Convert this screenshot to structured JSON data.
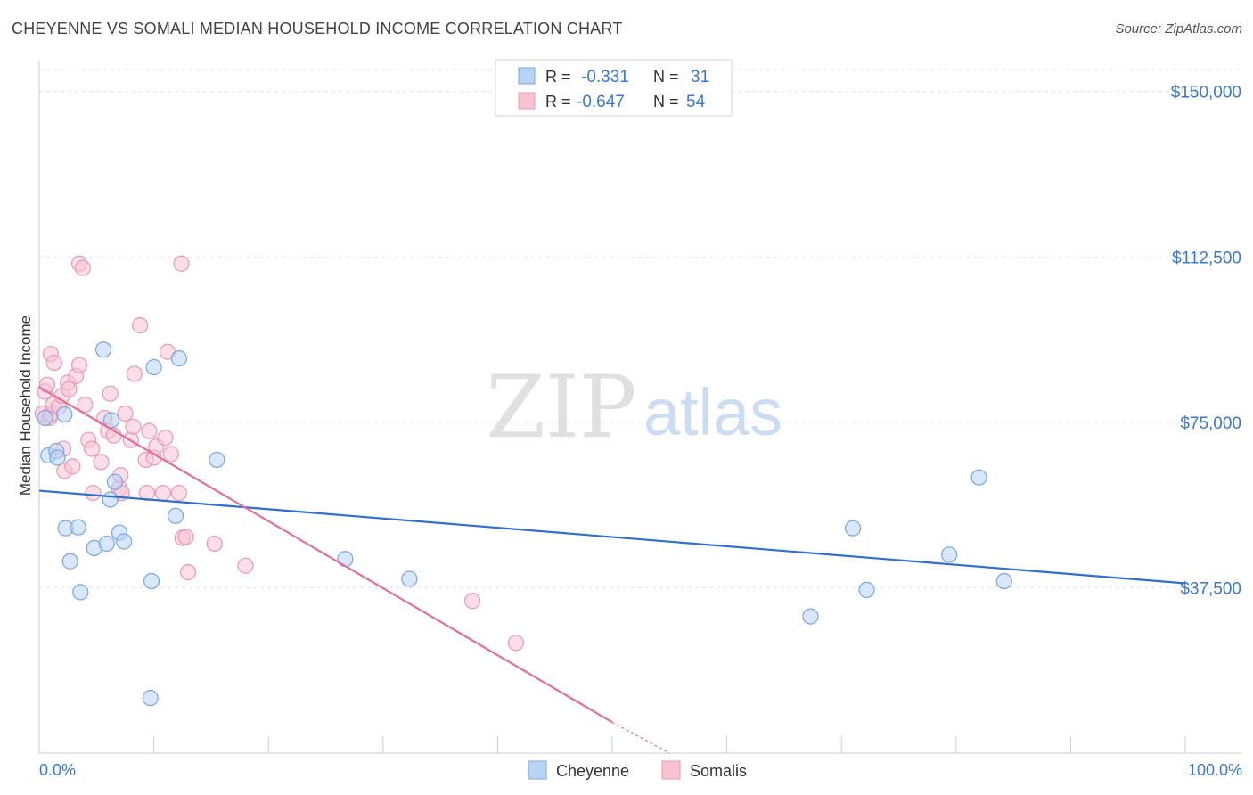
{
  "header": {
    "title": "CHEYENNE VS SOMALI MEDIAN HOUSEHOLD INCOME CORRELATION CHART",
    "source": "Source: ZipAtlas.com"
  },
  "watermark": {
    "zip": "ZIP",
    "atlas": "atlas"
  },
  "legend_top": [
    {
      "r_label": "R =",
      "r_value": "-0.331",
      "n_label": "N =",
      "n_value": "31"
    },
    {
      "r_label": "R =",
      "r_value": "-0.647",
      "n_label": "N =",
      "n_value": "54"
    }
  ],
  "colors": {
    "cheyenne_fill": "#b9d3f5",
    "cheyenne_stroke": "#7aa6df",
    "cheyenne_line": "#2f6fce",
    "somali_fill": "#f8c3d3",
    "somali_stroke": "#e899b3",
    "somali_line": "#e0709a",
    "axis_text": "#3a78d0",
    "grid": "#e2e2e2"
  },
  "chart_data": {
    "type": "scatter",
    "title": "CHEYENNE VS SOMALI MEDIAN HOUSEHOLD INCOME CORRELATION CHART",
    "xlabel": "",
    "ylabel": "Median Household Income",
    "xlim": [
      0,
      100
    ],
    "ylim": [
      0,
      155000
    ],
    "x_tick_labels": [
      "0.0%",
      "100.0%"
    ],
    "y_ticks": [
      37500,
      75000,
      112500,
      150000
    ],
    "y_tick_labels": [
      "$37,500",
      "$75,000",
      "$112,500",
      "$150,000"
    ],
    "grid": true,
    "legend_position": "top-center",
    "series": [
      {
        "name": "Cheyenne",
        "points": [
          [
            0.5,
            76000
          ],
          [
            0.8,
            67500
          ],
          [
            1.5,
            68500
          ],
          [
            1.6,
            67000
          ],
          [
            2.2,
            76800
          ],
          [
            2.3,
            51000
          ],
          [
            2.7,
            43500
          ],
          [
            3.4,
            51200
          ],
          [
            3.6,
            36500
          ],
          [
            4.8,
            46500
          ],
          [
            5.6,
            91500
          ],
          [
            5.9,
            47500
          ],
          [
            6.2,
            57500
          ],
          [
            6.3,
            75500
          ],
          [
            6.6,
            61500
          ],
          [
            7.0,
            50000
          ],
          [
            7.4,
            48000
          ],
          [
            9.7,
            12500
          ],
          [
            9.8,
            39000
          ],
          [
            10.0,
            87500
          ],
          [
            11.9,
            53800
          ],
          [
            12.2,
            89500
          ],
          [
            15.5,
            66500
          ],
          [
            26.7,
            44000
          ],
          [
            32.3,
            39500
          ],
          [
            67.3,
            31000
          ],
          [
            71.0,
            51000
          ],
          [
            72.2,
            37000
          ],
          [
            79.4,
            45000
          ],
          [
            82.0,
            62500
          ],
          [
            84.2,
            39000
          ]
        ],
        "trend": {
          "x": [
            0,
            100
          ],
          "y": [
            59500,
            38500
          ]
        }
      },
      {
        "name": "Somalis",
        "points": [
          [
            0.3,
            77000
          ],
          [
            0.5,
            82000
          ],
          [
            0.7,
            83500
          ],
          [
            0.9,
            76000
          ],
          [
            1.0,
            90500
          ],
          [
            1.0,
            76800
          ],
          [
            1.2,
            79000
          ],
          [
            1.3,
            88500
          ],
          [
            1.7,
            78500
          ],
          [
            2.0,
            81000
          ],
          [
            2.1,
            69000
          ],
          [
            2.2,
            64000
          ],
          [
            2.5,
            84000
          ],
          [
            2.6,
            82500
          ],
          [
            2.9,
            65000
          ],
          [
            3.2,
            85500
          ],
          [
            3.5,
            88000
          ],
          [
            3.5,
            111000
          ],
          [
            3.8,
            110000
          ],
          [
            4.0,
            79000
          ],
          [
            4.3,
            71000
          ],
          [
            4.6,
            69000
          ],
          [
            4.7,
            59000
          ],
          [
            5.4,
            66000
          ],
          [
            5.7,
            76000
          ],
          [
            6.0,
            73000
          ],
          [
            6.2,
            81500
          ],
          [
            6.5,
            72000
          ],
          [
            7.0,
            60000
          ],
          [
            7.1,
            63000
          ],
          [
            7.2,
            59000
          ],
          [
            7.5,
            77000
          ],
          [
            8.0,
            71000
          ],
          [
            8.2,
            74000
          ],
          [
            8.3,
            86000
          ],
          [
            8.8,
            97000
          ],
          [
            9.3,
            66500
          ],
          [
            9.4,
            59000
          ],
          [
            9.6,
            73000
          ],
          [
            10.0,
            67000
          ],
          [
            10.2,
            69500
          ],
          [
            10.8,
            59000
          ],
          [
            11.0,
            71500
          ],
          [
            11.2,
            91000
          ],
          [
            11.5,
            67800
          ],
          [
            12.2,
            59000
          ],
          [
            12.4,
            111000
          ],
          [
            12.5,
            48800
          ],
          [
            12.8,
            49000
          ],
          [
            13.0,
            41000
          ],
          [
            15.3,
            47500
          ],
          [
            18.0,
            42500
          ],
          [
            37.8,
            34500
          ],
          [
            41.6,
            25000
          ]
        ],
        "trend": {
          "x": [
            0,
            50
          ],
          "y": [
            83000,
            7000
          ]
        },
        "trend_dashed": {
          "x": [
            50,
            55
          ],
          "y": [
            7000,
            0
          ]
        }
      }
    ]
  },
  "legend_bottom": [
    "Cheyenne",
    "Somalis"
  ]
}
